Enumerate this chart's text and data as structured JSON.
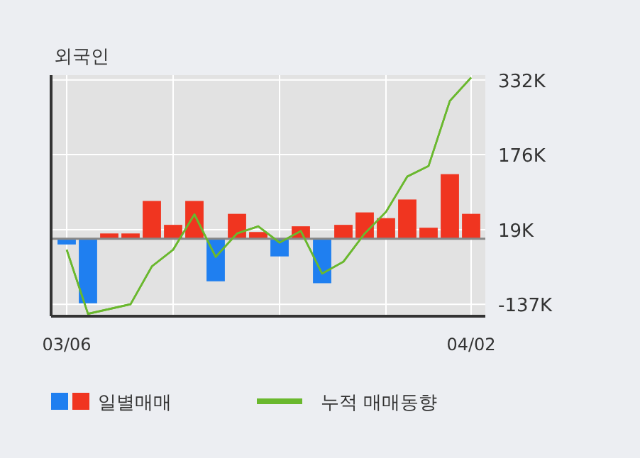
{
  "chart_data": {
    "type": "bar",
    "title": "외국인",
    "categories": [
      "03/06",
      null,
      null,
      null,
      null,
      null,
      null,
      null,
      null,
      null,
      null,
      null,
      null,
      null,
      null,
      null,
      null,
      null,
      null,
      "04/02"
    ],
    "series": [
      {
        "name": "일별매매",
        "colors": [
          "#1f7ff0",
          "#1f7ff0",
          "#f03520",
          "#f03520",
          "#f03520",
          "#f03520",
          "#f03520",
          "#1f7ff0",
          "#f03520",
          "#f03520",
          "#1f7ff0",
          "#f03520",
          "#1f7ff0",
          "#f03520",
          "#f03520",
          "#f03520",
          "#f03520",
          "#f03520",
          "#f03520",
          "#f03520"
        ],
        "values": [
          -12,
          -135,
          11,
          11,
          79,
          29,
          79,
          -89,
          52,
          14,
          -37,
          26,
          -93,
          29,
          55,
          43,
          82,
          23,
          135,
          52
        ]
      },
      {
        "name": "누적 매매동향",
        "type": "line",
        "color": "#6ab82e",
        "values": [
          -23,
          -157,
          -147,
          -137,
          -58,
          -23,
          51,
          -38,
          11,
          26,
          -8,
          16,
          -73,
          -48,
          11,
          56,
          130,
          152,
          288,
          337
        ]
      }
    ],
    "ylim": [
      -162,
      342
    ],
    "yticks": [
      {
        "value": 332,
        "label": "332K"
      },
      {
        "value": 176,
        "label": "176K"
      },
      {
        "value": 19,
        "label": "19K"
      },
      {
        "value": -137,
        "label": "-137K"
      }
    ],
    "ref_lines": [
      {
        "axis": "y",
        "value": 0,
        "color": "#888888"
      }
    ],
    "grid": true,
    "legend": "bottom"
  }
}
